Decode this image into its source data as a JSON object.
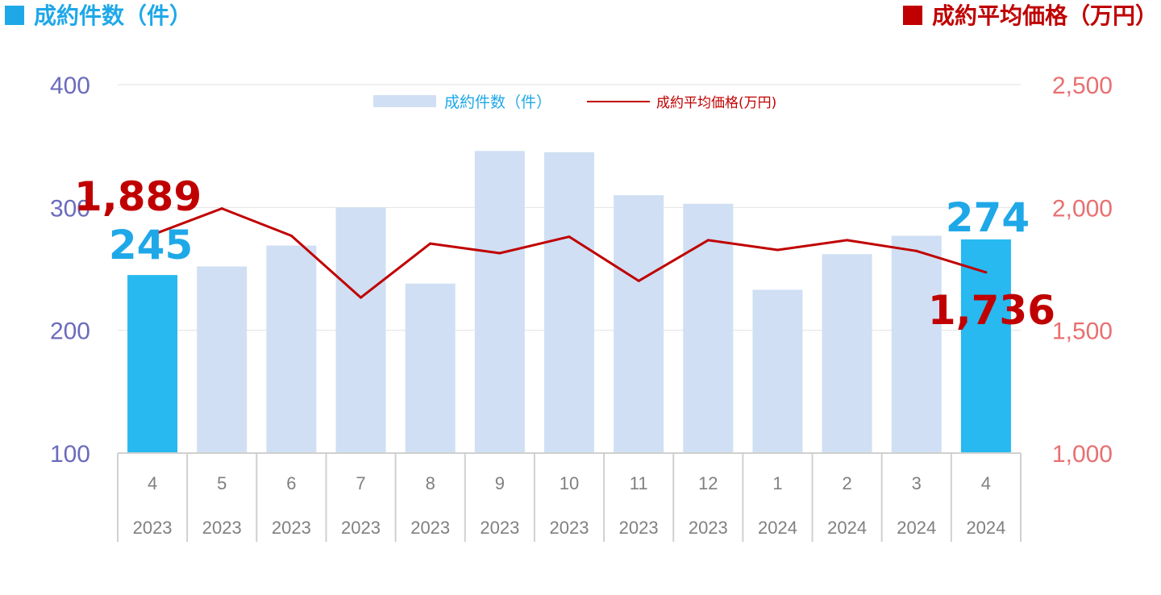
{
  "header": {
    "left_title": "成約件数（件）",
    "right_title": "成約平均価格（万円）",
    "left_marker_color": "#1fa8e8",
    "right_marker_color": "#c00000"
  },
  "chart_data": {
    "type": "bar",
    "categories": [
      [
        "4",
        "2023"
      ],
      [
        "5",
        "2023"
      ],
      [
        "6",
        "2023"
      ],
      [
        "7",
        "2023"
      ],
      [
        "8",
        "2023"
      ],
      [
        "9",
        "2023"
      ],
      [
        "10",
        "2023"
      ],
      [
        "11",
        "2023"
      ],
      [
        "12",
        "2023"
      ],
      [
        "1",
        "2024"
      ],
      [
        "2",
        "2024"
      ],
      [
        "3",
        "2024"
      ],
      [
        "4",
        "2024"
      ]
    ],
    "series": [
      {
        "name": "成約件数（件）",
        "type": "bar",
        "axis": "left",
        "values": [
          245,
          252,
          269,
          300,
          238,
          346,
          345,
          310,
          303,
          233,
          262,
          277,
          274
        ],
        "color": "#d0dff3",
        "highlight_color": "#27b9ef",
        "highlight_indices": [
          0,
          12
        ]
      },
      {
        "name": "成約平均価格(万円)",
        "type": "line",
        "axis": "right",
        "values": [
          1889,
          1996,
          1885,
          1633,
          1853,
          1814,
          1881,
          1701,
          1867,
          1827,
          1867,
          1823,
          1736
        ],
        "color": "#c00000"
      }
    ],
    "y_left": {
      "ylim": [
        100,
        400
      ],
      "ticks": [
        "100",
        "200",
        "300",
        "400"
      ],
      "color": "#6b6bbd"
    },
    "y_right": {
      "ylim": [
        1000,
        2500
      ],
      "ticks": [
        "1,000",
        "1,500",
        "2,000",
        "2,500"
      ],
      "color": "#e87070"
    },
    "annotations": [
      {
        "text": "245",
        "series": 0,
        "index": 0,
        "color": "#1fa8e8"
      },
      {
        "text": "274",
        "series": 0,
        "index": 12,
        "color": "#1fa8e8"
      },
      {
        "text": "1,889",
        "series": 1,
        "index": 0,
        "color": "#c00000"
      },
      {
        "text": "1,736",
        "series": 1,
        "index": 12,
        "color": "#c00000"
      }
    ],
    "legend": {
      "position": "top-center"
    },
    "grid": true
  }
}
